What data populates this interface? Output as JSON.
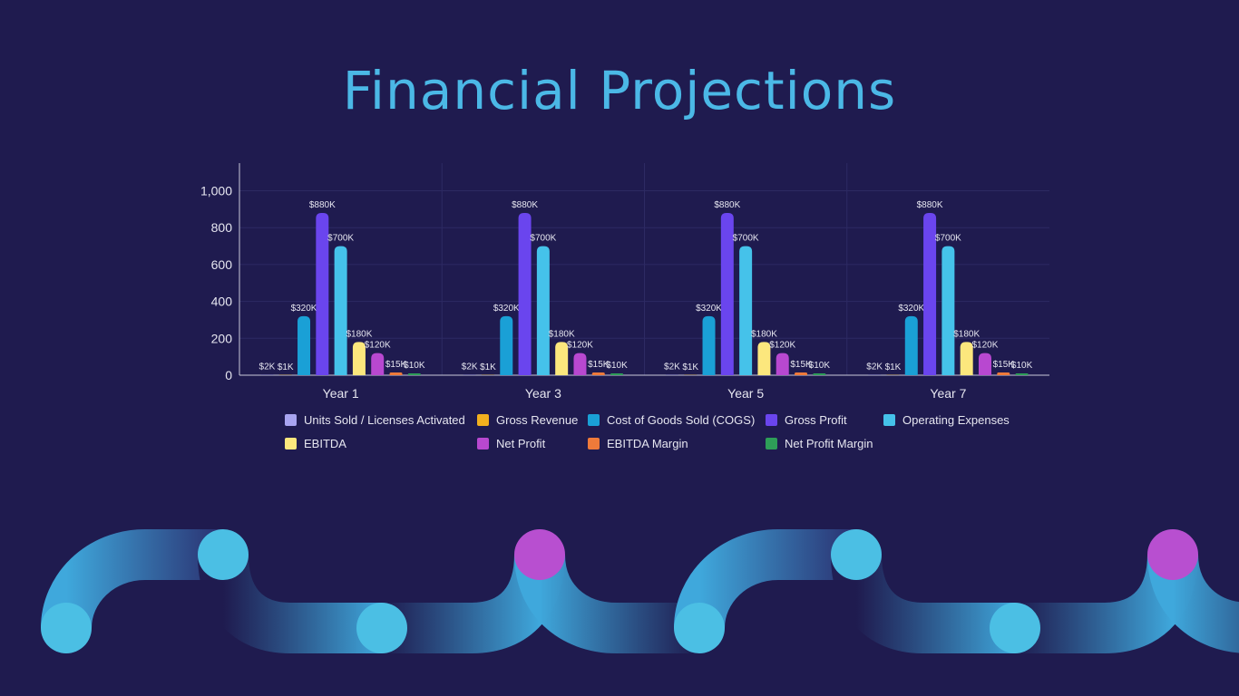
{
  "page": {
    "title": "Financial Projections"
  },
  "chart_data": {
    "type": "bar",
    "categories": [
      "Year 1",
      "Year 3",
      "Year 5",
      "Year 7"
    ],
    "ylim": [
      0,
      1150
    ],
    "yticks": [
      0,
      200,
      400,
      600,
      800,
      1000
    ],
    "ytick_labels": [
      "0",
      "200",
      "400",
      "600",
      "800",
      "1,000"
    ],
    "grid": true,
    "legend_position": "bottom",
    "series": [
      {
        "name": "Units Sold / Licenses Activated",
        "color": "#a8a4f0",
        "values": [
          2,
          2,
          2,
          2
        ],
        "labels": [
          "$2K",
          "$2K",
          "$2K",
          "$2K"
        ]
      },
      {
        "name": "Gross Revenue",
        "color": "#f2b01e",
        "values": [
          1,
          1,
          1,
          1
        ],
        "labels": [
          "$1K",
          "$1K",
          "$1K",
          "$1K"
        ]
      },
      {
        "name": "Cost of Goods Sold (COGS)",
        "color": "#1aa0d6",
        "values": [
          320,
          320,
          320,
          320
        ],
        "labels": [
          "$320K",
          "$320K",
          "$320K",
          "$320K"
        ]
      },
      {
        "name": "Gross Profit",
        "color": "#6a45ee",
        "values": [
          880,
          880,
          880,
          880
        ],
        "labels": [
          "$880K",
          "$880K",
          "$880K",
          "$880K"
        ]
      },
      {
        "name": "Operating Expenses",
        "color": "#45c2ea",
        "values": [
          700,
          700,
          700,
          700
        ],
        "labels": [
          "$700K",
          "$700K",
          "$700K",
          "$700K"
        ]
      },
      {
        "name": "EBITDA",
        "color": "#fce77d",
        "values": [
          180,
          180,
          180,
          180
        ],
        "labels": [
          "$180K",
          "$180K",
          "$180K",
          "$180K"
        ]
      },
      {
        "name": "Net Profit",
        "color": "#b848d0",
        "values": [
          120,
          120,
          120,
          120
        ],
        "labels": [
          "$120K",
          "$120K",
          "$120K",
          "$120K"
        ]
      },
      {
        "name": "EBITDA Margin",
        "color": "#ef7a3a",
        "values": [
          15,
          15,
          15,
          15
        ],
        "labels": [
          "$15K",
          "$15K",
          "$15K",
          "$15K"
        ]
      },
      {
        "name": "Net Profit Margin",
        "color": "#2e9e58",
        "values": [
          10,
          10,
          10,
          10
        ],
        "labels": [
          "$10K",
          "$10K",
          "$10K",
          "$10K"
        ]
      }
    ]
  },
  "decoration": {
    "tube_color": "#3fa3d6",
    "node_color": "#4bbfe4",
    "accent_node_color": "#b84fd0",
    "background": "#1f1b4f"
  }
}
